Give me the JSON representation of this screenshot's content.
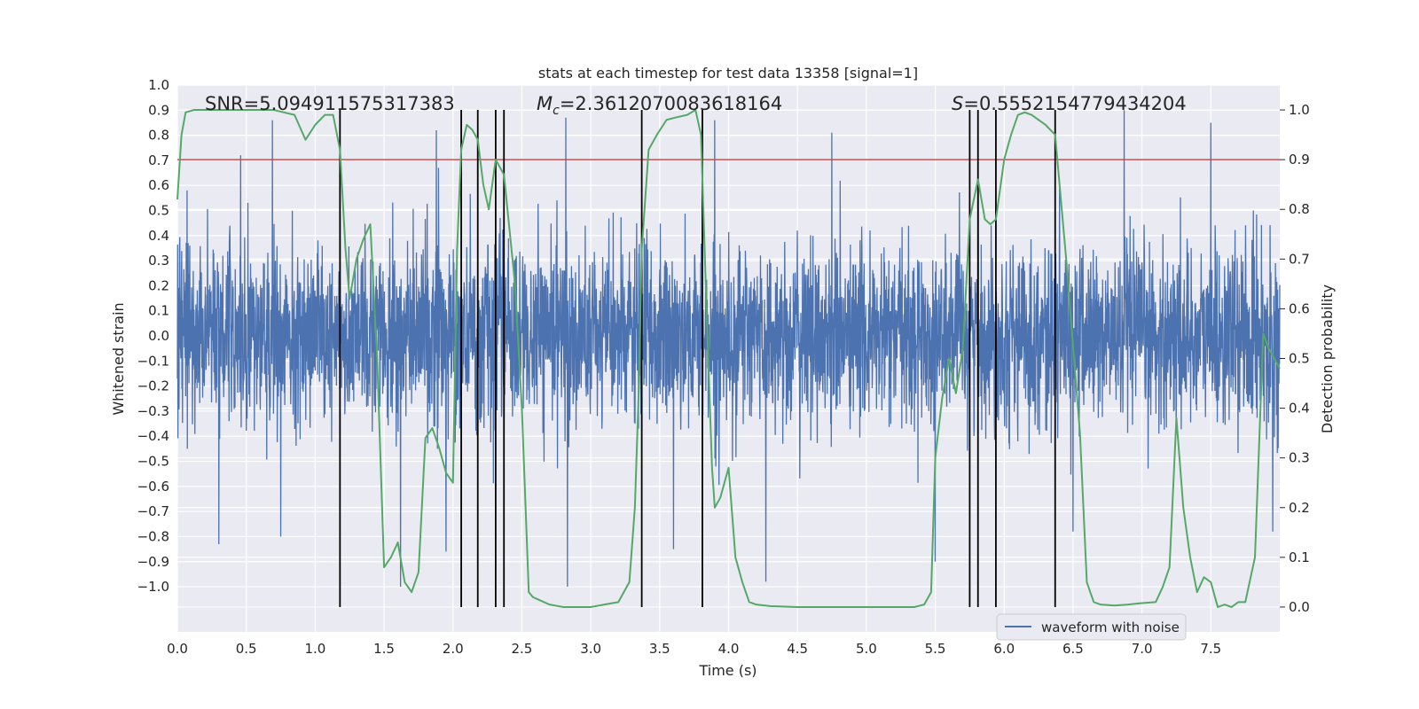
{
  "chart_data": {
    "type": "line",
    "title": "stats at each timestep for test data 13358 [signal=1]",
    "xlabel": "Time (s)",
    "ylabel": "Whitened strain",
    "y2label": "Detection probability",
    "xlim": [
      0.0,
      8.0
    ],
    "ylim": [
      -1.18,
      1.0
    ],
    "y2lim": [
      -0.05,
      1.05
    ],
    "grid": true,
    "x_ticks": [
      0.0,
      0.5,
      1.0,
      1.5,
      2.0,
      2.5,
      3.0,
      3.5,
      4.0,
      4.5,
      5.0,
      5.5,
      6.0,
      6.5,
      7.0,
      7.5
    ],
    "x_tick_labels": [
      "0.0",
      "0.5",
      "1.0",
      "1.5",
      "2.0",
      "2.5",
      "3.0",
      "3.5",
      "4.0",
      "4.5",
      "5.0",
      "5.5",
      "6.0",
      "6.5",
      "7.0",
      "7.5"
    ],
    "y_ticks": [
      1.0,
      0.9,
      0.8,
      0.7,
      0.6,
      0.5,
      0.4,
      0.3,
      0.2,
      0.1,
      0.0,
      -0.1,
      -0.2,
      -0.3,
      -0.4,
      -0.5,
      -0.6,
      -0.7,
      -0.8,
      -0.9,
      -1.0
    ],
    "y_tick_labels": [
      "1.0",
      "0.9",
      "0.8",
      "0.7",
      "0.6",
      "0.5",
      "0.4",
      "0.3",
      "0.2",
      "0.1",
      "0.0",
      "−0.1",
      "−0.2",
      "−0.3",
      "−0.4",
      "−0.5",
      "−0.6",
      "−0.7",
      "−0.8",
      "−0.9",
      "−1.0"
    ],
    "y2_ticks": [
      1.0,
      0.9,
      0.8,
      0.7,
      0.6,
      0.5,
      0.4,
      0.3,
      0.2,
      0.1,
      0.0
    ],
    "y2_tick_labels": [
      "1.0",
      "0.9",
      "0.8",
      "0.7",
      "0.6",
      "0.5",
      "0.4",
      "0.3",
      "0.2",
      "0.1",
      "0.0"
    ],
    "annotations": {
      "snr": "SNR=5.094911575317383",
      "mc_symbol": "M",
      "mc_sub": "c",
      "mc_value": "=2.3612070083618164",
      "s_symbol": "S",
      "s_value": "=0.5552154779434204"
    },
    "threshold": {
      "y2": 0.9,
      "color": "#c44e52"
    },
    "vertical_lines": {
      "x": [
        1.18,
        2.06,
        2.18,
        2.31,
        2.37,
        3.37,
        3.81,
        5.75,
        5.81,
        5.94,
        6.37
      ],
      "y2_range": [
        0.0,
        1.0
      ],
      "color": "#000000"
    },
    "series": [
      {
        "name": "waveform with noise",
        "color": "#4c72b0",
        "axis": "left",
        "envelope": {
          "description": "dense noisy strain signal",
          "x_range": [
            0.0,
            8.0
          ],
          "typical_amplitude": 0.32,
          "peaks": [
            {
              "x": 0.07,
              "y": 0.58
            },
            {
              "x": 0.3,
              "y": -0.83
            },
            {
              "x": 0.46,
              "y": 0.72
            },
            {
              "x": 0.69,
              "y": 0.86
            },
            {
              "x": 0.75,
              "y": -0.8
            },
            {
              "x": 1.18,
              "y": 0.73
            },
            {
              "x": 1.62,
              "y": -1.0
            },
            {
              "x": 1.88,
              "y": 0.82
            },
            {
              "x": 1.95,
              "y": -0.86
            },
            {
              "x": 2.82,
              "y": 0.87
            },
            {
              "x": 2.83,
              "y": -1.0
            },
            {
              "x": 3.6,
              "y": -0.85
            },
            {
              "x": 3.9,
              "y": 0.86
            },
            {
              "x": 4.27,
              "y": -0.98
            },
            {
              "x": 4.75,
              "y": 0.81
            },
            {
              "x": 5.5,
              "y": -0.9
            },
            {
              "x": 6.5,
              "y": -0.78
            },
            {
              "x": 6.87,
              "y": 0.9
            },
            {
              "x": 7.5,
              "y": 0.85
            },
            {
              "x": 7.95,
              "y": -0.78
            }
          ]
        }
      },
      {
        "name": "",
        "color": "#55a868",
        "axis": "right",
        "x": [
          0.0,
          0.03,
          0.06,
          0.12,
          0.2,
          0.3,
          0.5,
          0.7,
          0.85,
          0.93,
          1.0,
          1.07,
          1.13,
          1.18,
          1.22,
          1.25,
          1.3,
          1.35,
          1.4,
          1.45,
          1.5,
          1.55,
          1.6,
          1.65,
          1.7,
          1.75,
          1.8,
          1.85,
          1.9,
          1.95,
          2.0,
          2.03,
          2.06,
          2.1,
          2.14,
          2.18,
          2.22,
          2.26,
          2.31,
          2.37,
          2.45,
          2.5,
          2.55,
          2.58,
          2.62,
          2.7,
          2.8,
          2.9,
          3.0,
          3.1,
          3.2,
          3.28,
          3.32,
          3.35,
          3.37,
          3.42,
          3.48,
          3.55,
          3.62,
          3.7,
          3.76,
          3.8,
          3.84,
          3.88,
          3.9,
          3.94,
          4.0,
          4.05,
          4.1,
          4.15,
          4.2,
          4.3,
          4.5,
          4.7,
          5.0,
          5.2,
          5.35,
          5.42,
          5.47,
          5.5,
          5.55,
          5.6,
          5.65,
          5.7,
          5.75,
          5.81,
          5.86,
          5.9,
          5.94,
          6.0,
          6.05,
          6.1,
          6.15,
          6.2,
          6.25,
          6.3,
          6.37,
          6.45,
          6.55,
          6.6,
          6.65,
          6.7,
          6.8,
          6.9,
          7.0,
          7.1,
          7.15,
          7.2,
          7.25,
          7.3,
          7.35,
          7.4,
          7.45,
          7.5,
          7.55,
          7.6,
          7.65,
          7.7,
          7.75,
          7.82,
          7.88,
          7.92,
          7.96,
          8.0
        ],
        "values": [
          0.82,
          0.95,
          0.995,
          1.0,
          1.0,
          1.0,
          1.0,
          1.0,
          0.99,
          0.94,
          0.97,
          0.99,
          0.99,
          0.92,
          0.72,
          0.62,
          0.7,
          0.74,
          0.77,
          0.5,
          0.08,
          0.1,
          0.13,
          0.05,
          0.03,
          0.07,
          0.34,
          0.36,
          0.32,
          0.27,
          0.25,
          0.72,
          0.92,
          0.97,
          0.96,
          0.94,
          0.85,
          0.8,
          0.9,
          0.87,
          0.65,
          0.4,
          0.03,
          0.02,
          0.015,
          0.005,
          0.0,
          0.0,
          0.0,
          0.005,
          0.01,
          0.05,
          0.2,
          0.45,
          0.72,
          0.92,
          0.95,
          0.98,
          0.985,
          0.99,
          1.0,
          0.95,
          0.6,
          0.28,
          0.2,
          0.22,
          0.28,
          0.1,
          0.05,
          0.01,
          0.005,
          0.002,
          0.0,
          0.0,
          0.0,
          0.0,
          0.0,
          0.005,
          0.03,
          0.3,
          0.42,
          0.5,
          0.43,
          0.52,
          0.78,
          0.86,
          0.78,
          0.77,
          0.78,
          0.9,
          0.95,
          0.99,
          0.995,
          0.99,
          0.98,
          0.97,
          0.95,
          0.7,
          0.35,
          0.05,
          0.01,
          0.005,
          0.003,
          0.005,
          0.008,
          0.01,
          0.04,
          0.08,
          0.38,
          0.2,
          0.1,
          0.03,
          0.06,
          0.05,
          0.0,
          0.005,
          0.0,
          0.01,
          0.01,
          0.1,
          0.55,
          0.52,
          0.5,
          0.48
        ]
      }
    ],
    "legend": {
      "placement": "lower-right",
      "entries": [
        "waveform with noise"
      ]
    }
  }
}
